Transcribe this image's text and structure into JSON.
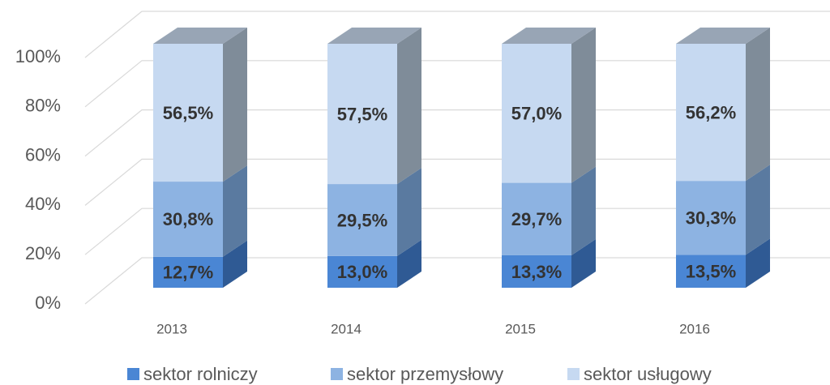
{
  "chart_data": {
    "type": "bar3d_stacked",
    "categories": [
      "2013",
      "2014",
      "2015",
      "2016"
    ],
    "series": [
      {
        "name": "sektor rolniczy",
        "color": "#4a86d4",
        "side_color": "#2f5a94",
        "values": [
          12.7,
          13.0,
          13.3,
          13.5
        ],
        "value_labels": [
          "12,7%",
          "13,0%",
          "13,3%",
          "13,5%"
        ]
      },
      {
        "name": "sektor przemysłowy",
        "color": "#8db3e2",
        "side_color": "#5a7aa0",
        "values": [
          30.8,
          29.5,
          29.7,
          30.3
        ],
        "value_labels": [
          "30,8%",
          "29,5%",
          "29,7%",
          "30,3%"
        ]
      },
      {
        "name": "sektor usługowy",
        "color": "#c6d9f1",
        "side_color": "#7f8c99",
        "top_color": "#98a5b5",
        "values": [
          56.5,
          57.5,
          57.0,
          56.2
        ],
        "value_labels": [
          "56,5%",
          "57,5%",
          "57,0%",
          "56,2%"
        ]
      }
    ],
    "ylim": [
      0,
      100
    ],
    "yticks": [
      {
        "value": 0,
        "label": "0%"
      },
      {
        "value": 20,
        "label": "20%"
      },
      {
        "value": 40,
        "label": "40%"
      },
      {
        "value": 60,
        "label": "60%"
      },
      {
        "value": 80,
        "label": "80%"
      },
      {
        "value": 100,
        "label": "100%"
      }
    ],
    "grid": true,
    "legend": "bottom"
  }
}
